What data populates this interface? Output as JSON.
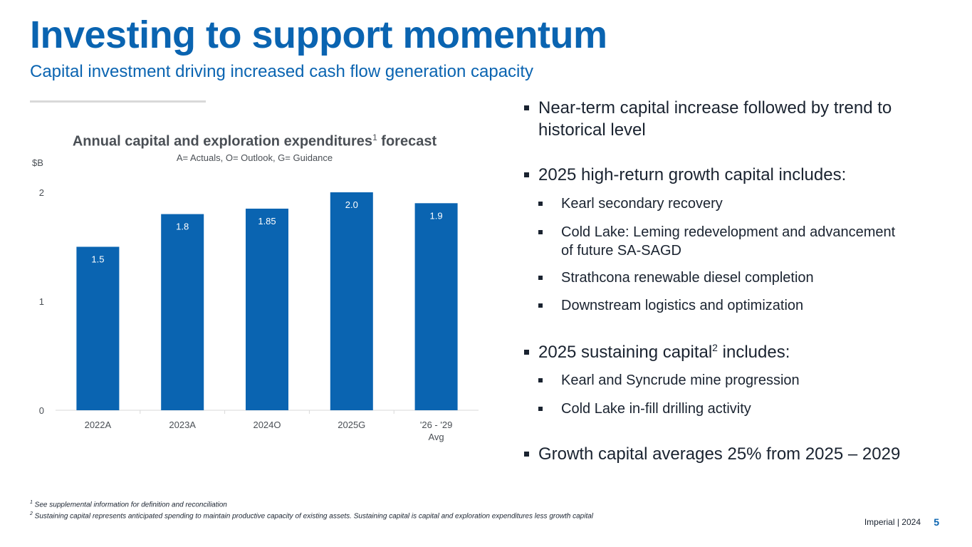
{
  "header": {
    "title": "Investing to support momentum",
    "subtitle": "Capital investment driving increased cash flow generation capacity"
  },
  "chart_header": {
    "title_main": "Annual capital and exploration expenditures",
    "title_sup": "1",
    "title_end": " forecast",
    "note": "A= Actuals, O= Outlook, G= Guidance"
  },
  "chart_data": {
    "type": "bar",
    "title": "Annual capital and exploration expenditures¹ forecast",
    "subtitle": "A= Actuals, O= Outlook, G= Guidance",
    "ylabel": "$B",
    "xlabel": "",
    "categories": [
      "2022A",
      "2023A",
      "2024O",
      "2025G",
      "'26 - '29 Avg"
    ],
    "category_lines": [
      [
        "2022A"
      ],
      [
        "2023A"
      ],
      [
        "2024O"
      ],
      [
        "2025G"
      ],
      [
        "'26 - '29",
        "Avg"
      ]
    ],
    "values": [
      1.5,
      1.8,
      1.85,
      2.0,
      1.9
    ],
    "value_labels": [
      "1.5",
      "1.8",
      "1.85",
      "2.0",
      "1.9"
    ],
    "ylim": [
      0,
      2
    ],
    "yticks": [
      0,
      1,
      2
    ],
    "grid": false,
    "bar_color": "#0a64b1",
    "label_color": "#ffffff"
  },
  "bullets": {
    "near_term": "Near-term capital increase followed by trend to historical level",
    "growth_heading": "2025 high-return growth capital includes:",
    "growth_items": [
      "Kearl secondary recovery",
      "Cold Lake: Leming redevelopment and advancement of future SA-SAGD",
      "Strathcona renewable diesel completion",
      "Downstream logistics and optimization"
    ],
    "sustaining_heading_main": "2025 sustaining capital",
    "sustaining_heading_sup": "2",
    "sustaining_heading_end": " includes:",
    "sustaining_items": [
      "Kearl and Syncrude mine progression",
      "Cold Lake in-fill drilling activity"
    ],
    "growth_average": "Growth capital averages 25% from 2025 – 2029"
  },
  "footnotes": {
    "note1_sup": "1",
    "note1": " See supplemental information for definition and reconciliation",
    "note2_sup": "2",
    "note2": " Sustaining capital represents anticipated spending to maintain productive capacity of existing assets. Sustaining capital is  capital and exploration expenditures less growth capital"
  },
  "footer": {
    "company_year": "Imperial  |  2024",
    "page_number": "5"
  },
  "colors": {
    "brand_blue": "#0a64b1",
    "text_dark": "#1a2330",
    "text_grey": "#4a4f55"
  }
}
